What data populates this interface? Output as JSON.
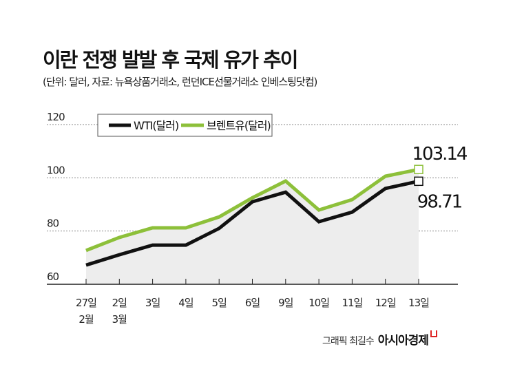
{
  "header": {
    "title": "이란 전쟁 발발 후 국제 유가 추이",
    "subtitle": "(단위: 달러, 자료: 뉴욕상품거래소, 런던ICE선물거래소 인베스팅닷컴)"
  },
  "footer": {
    "credit": "그래픽 최길수",
    "brand": "아시아경제"
  },
  "chart_data": {
    "type": "line",
    "categories": [
      "27일\n2월",
      "2일\n3월",
      "3일",
      "4일",
      "5일",
      "6일",
      "9일",
      "10일",
      "11일",
      "12일",
      "13일"
    ],
    "ylim": [
      60,
      120
    ],
    "yticks": [
      60,
      80,
      100,
      120
    ],
    "grid": true,
    "legend_placement": "top",
    "series": [
      {
        "name": "WTI(달러)",
        "color": "#111111",
        "values": [
          67.2,
          71.1,
          74.7,
          74.7,
          81.0,
          91.0,
          94.6,
          83.5,
          87.1,
          96.0,
          98.71
        ],
        "end_label": "98.71"
      },
      {
        "name": "브렌트유(달러)",
        "color": "#8dc03a",
        "values": [
          72.7,
          77.6,
          81.2,
          81.2,
          85.3,
          92.5,
          98.8,
          87.9,
          91.8,
          100.6,
          103.14
        ],
        "end_label": "103.14"
      }
    ],
    "area_fill": "#ededed"
  }
}
